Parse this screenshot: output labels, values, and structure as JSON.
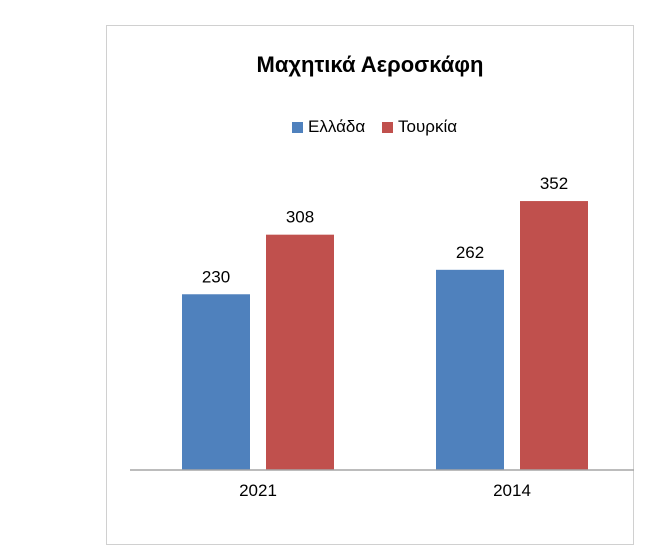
{
  "chart_data": {
    "type": "bar",
    "title": "Μαχητικά Αεροσκάφη",
    "categories": [
      "2021",
      "2014"
    ],
    "series": [
      {
        "name": "Ελλάδα",
        "values": [
          230,
          262
        ],
        "color": "#4f81bd"
      },
      {
        "name": "Τουρκία",
        "values": [
          308,
          352
        ],
        "color": "#c0504d"
      }
    ],
    "xlabel": "",
    "ylabel": "",
    "ylim": [
      0,
      445
    ],
    "grid": false,
    "legend": "top-center",
    "data_labels": true
  }
}
